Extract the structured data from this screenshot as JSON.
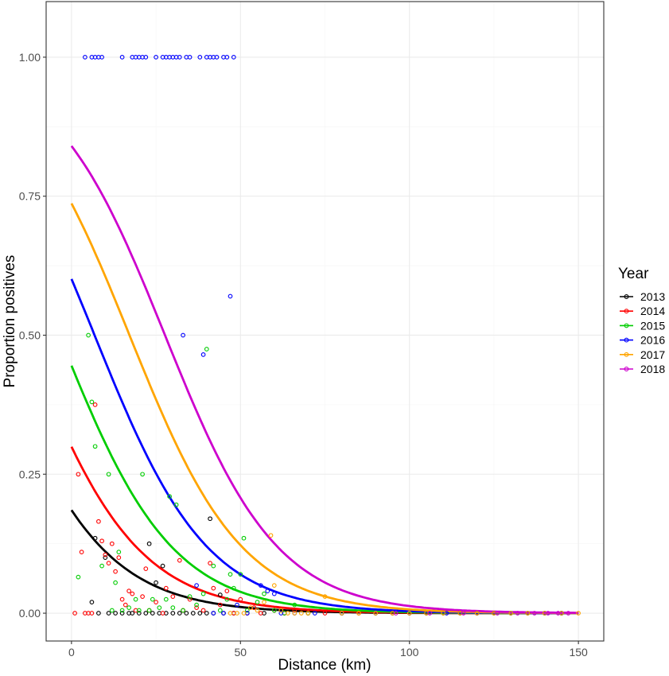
{
  "chart_data": {
    "type": "scatter",
    "title": "",
    "xlabel": "Distance (km)",
    "ylabel": "Proportion positives",
    "xlim": [
      -7.5,
      157.5
    ],
    "ylim": [
      -0.05,
      1.1
    ],
    "x_ticks": [
      0,
      50,
      100,
      150
    ],
    "y_ticks": [
      0.0,
      0.25,
      0.5,
      0.75,
      1.0
    ],
    "x_tick_labels": [
      "0",
      "50",
      "100",
      "150"
    ],
    "y_tick_labels": [
      "0.00",
      "0.25",
      "0.50",
      "0.75",
      "1.00"
    ],
    "grid": true,
    "legend_title": "Year",
    "legend_position": "right",
    "curve_x_range": [
      0,
      150
    ],
    "series": [
      {
        "name": "2013",
        "color": "#000000",
        "curve": {
          "intercept": -1.48,
          "slope": -0.06
        },
        "points": [
          [
            6,
            0.02
          ],
          [
            7,
            0.135
          ],
          [
            8,
            0
          ],
          [
            10,
            0.1
          ],
          [
            11,
            0
          ],
          [
            13,
            0
          ],
          [
            15,
            0
          ],
          [
            17,
            0
          ],
          [
            18,
            0
          ],
          [
            20,
            0
          ],
          [
            22,
            0
          ],
          [
            23,
            0.125
          ],
          [
            24,
            0
          ],
          [
            25,
            0.055
          ],
          [
            26,
            0
          ],
          [
            27,
            0.085
          ],
          [
            28,
            0
          ],
          [
            30,
            0
          ],
          [
            32,
            0
          ],
          [
            34,
            0
          ],
          [
            36,
            0
          ],
          [
            38,
            0
          ],
          [
            40,
            0
          ],
          [
            41,
            0.17
          ],
          [
            42,
            0
          ],
          [
            44,
            0.033
          ],
          [
            45,
            0
          ],
          [
            48,
            0
          ],
          [
            52,
            0
          ],
          [
            57,
            0
          ],
          [
            63,
            0
          ],
          [
            70,
            0
          ],
          [
            80,
            0
          ],
          [
            95,
            0
          ],
          [
            105,
            0
          ],
          [
            115,
            0
          ],
          [
            125,
            0
          ],
          [
            135,
            0
          ],
          [
            145,
            0
          ]
        ]
      },
      {
        "name": "2014",
        "color": "#ff0000",
        "curve": {
          "intercept": -0.85,
          "slope": -0.06
        },
        "points": [
          [
            1,
            0
          ],
          [
            2,
            0.25
          ],
          [
            3,
            0.11
          ],
          [
            4,
            0
          ],
          [
            5,
            0
          ],
          [
            6,
            0
          ],
          [
            7,
            0.375
          ],
          [
            8,
            0.165
          ],
          [
            9,
            0.13
          ],
          [
            10,
            0.105
          ],
          [
            11,
            0.09
          ],
          [
            12,
            0.125
          ],
          [
            13,
            0.075
          ],
          [
            14,
            0.1
          ],
          [
            15,
            0.025
          ],
          [
            16,
            0.015
          ],
          [
            17,
            0.04
          ],
          [
            18,
            0.035
          ],
          [
            19,
            0.005
          ],
          [
            21,
            0.03
          ],
          [
            22,
            0.08
          ],
          [
            23,
            0.005
          ],
          [
            25,
            0.02
          ],
          [
            27,
            0
          ],
          [
            28,
            0.045
          ],
          [
            30,
            0.03
          ],
          [
            32,
            0.095
          ],
          [
            33,
            0.005
          ],
          [
            35,
            0.025
          ],
          [
            37,
            0.01
          ],
          [
            39,
            0.005
          ],
          [
            41,
            0.09
          ],
          [
            42,
            0.045
          ],
          [
            44,
            0.015
          ],
          [
            46,
            0.04
          ],
          [
            48,
            0
          ],
          [
            50,
            0.025
          ],
          [
            52,
            0
          ],
          [
            54,
            0.01
          ],
          [
            56,
            0
          ],
          [
            60,
            0.005
          ],
          [
            63,
            0
          ],
          [
            66,
            0.005
          ],
          [
            70,
            0
          ],
          [
            75,
            0
          ],
          [
            80,
            0
          ],
          [
            85,
            0
          ],
          [
            90,
            0
          ],
          [
            95,
            0
          ],
          [
            100,
            0
          ],
          [
            110,
            0
          ],
          [
            120,
            0
          ],
          [
            130,
            0
          ],
          [
            140,
            0
          ],
          [
            145,
            0
          ]
        ]
      },
      {
        "name": "2015",
        "color": "#00cd00",
        "curve": {
          "intercept": -0.22,
          "slope": -0.06
        },
        "points": [
          [
            2,
            0.065
          ],
          [
            5,
            0.5
          ],
          [
            6,
            0.38
          ],
          [
            7,
            0.3
          ],
          [
            9,
            0.085
          ],
          [
            11,
            0.25
          ],
          [
            12,
            0.005
          ],
          [
            13,
            0.055
          ],
          [
            14,
            0.11
          ],
          [
            15,
            0.005
          ],
          [
            17,
            0.01
          ],
          [
            19,
            0.025
          ],
          [
            20,
            0.005
          ],
          [
            21,
            0.25
          ],
          [
            23,
            0.005
          ],
          [
            24,
            0.025
          ],
          [
            26,
            0.01
          ],
          [
            28,
            0.025
          ],
          [
            29,
            0.21
          ],
          [
            30,
            0.01
          ],
          [
            31,
            0.195
          ],
          [
            33,
            0.005
          ],
          [
            35,
            0.03
          ],
          [
            37,
            0.015
          ],
          [
            39,
            0.035
          ],
          [
            40,
            0.475
          ],
          [
            42,
            0.085
          ],
          [
            44,
            0.005
          ],
          [
            46,
            0.025
          ],
          [
            47,
            0.07
          ],
          [
            48,
            0.045
          ],
          [
            50,
            0.07
          ],
          [
            51,
            0.135
          ],
          [
            52,
            0.005
          ],
          [
            55,
            0.02
          ],
          [
            57,
            0.035
          ],
          [
            60,
            0.005
          ],
          [
            63,
            0
          ],
          [
            66,
            0.015
          ],
          [
            70,
            0
          ],
          [
            80,
            0
          ],
          [
            90,
            0
          ],
          [
            100,
            0
          ],
          [
            110,
            0
          ],
          [
            120,
            0
          ],
          [
            130,
            0
          ],
          [
            140,
            0
          ],
          [
            145,
            0
          ]
        ]
      },
      {
        "name": "2016",
        "color": "#0000ff",
        "curve": {
          "intercept": 0.41,
          "slope": -0.06
        },
        "points": [
          [
            4,
            1
          ],
          [
            6,
            1
          ],
          [
            7,
            1
          ],
          [
            8,
            1
          ],
          [
            9,
            1
          ],
          [
            15,
            1
          ],
          [
            18,
            1
          ],
          [
            19,
            1
          ],
          [
            20,
            1
          ],
          [
            21,
            1
          ],
          [
            22,
            1
          ],
          [
            25,
            1
          ],
          [
            27,
            1
          ],
          [
            28,
            1
          ],
          [
            29,
            1
          ],
          [
            30,
            1
          ],
          [
            31,
            1
          ],
          [
            32,
            1
          ],
          [
            34,
            1
          ],
          [
            35,
            1
          ],
          [
            38,
            1
          ],
          [
            40,
            1
          ],
          [
            41,
            1
          ],
          [
            42,
            1
          ],
          [
            43,
            1
          ],
          [
            45,
            1
          ],
          [
            46,
            1
          ],
          [
            48,
            1
          ],
          [
            33,
            0.5
          ],
          [
            39,
            0.465
          ],
          [
            47,
            0.57
          ],
          [
            37,
            0.05
          ],
          [
            42,
            0
          ],
          [
            45,
            0
          ],
          [
            49,
            0.015
          ],
          [
            52,
            0
          ],
          [
            56,
            0.05
          ],
          [
            58,
            0.04
          ],
          [
            60,
            0.035
          ],
          [
            62,
            0
          ],
          [
            66,
            0
          ],
          [
            72,
            0
          ],
          [
            80,
            0
          ],
          [
            90,
            0
          ],
          [
            100,
            0
          ],
          [
            111,
            0
          ],
          [
            120,
            0
          ],
          [
            130,
            0
          ],
          [
            140,
            0
          ],
          [
            145,
            0
          ]
        ]
      },
      {
        "name": "2017",
        "color": "#ffa500",
        "curve": {
          "intercept": 1.03,
          "slope": -0.06
        },
        "points": [
          [
            47,
            0
          ],
          [
            49,
            0
          ],
          [
            51,
            0
          ],
          [
            53,
            0.01
          ],
          [
            55,
            0.005
          ],
          [
            57,
            0.02
          ],
          [
            59,
            0.14
          ],
          [
            60,
            0.05
          ],
          [
            62,
            0.005
          ],
          [
            64,
            0
          ],
          [
            66,
            0
          ],
          [
            68,
            0
          ],
          [
            70,
            0
          ],
          [
            75,
            0.03
          ],
          [
            80,
            0
          ],
          [
            85,
            0
          ],
          [
            90,
            0
          ],
          [
            95,
            0
          ],
          [
            100,
            0
          ],
          [
            105,
            0
          ],
          [
            110,
            0
          ],
          [
            115,
            0
          ],
          [
            120,
            0
          ],
          [
            125,
            0
          ],
          [
            130,
            0
          ],
          [
            135,
            0
          ],
          [
            140,
            0
          ],
          [
            145,
            0
          ],
          [
            150,
            0
          ]
        ]
      },
      {
        "name": "2018",
        "color": "#cd00cd",
        "curve": {
          "intercept": 1.66,
          "slope": -0.06
        },
        "points": [
          [
            96,
            0
          ],
          [
            106,
            0
          ],
          [
            116,
            0
          ],
          [
            126,
            0
          ],
          [
            132,
            0
          ],
          [
            137,
            0
          ],
          [
            141,
            0
          ],
          [
            144,
            0
          ],
          [
            147,
            0
          ]
        ]
      }
    ]
  }
}
